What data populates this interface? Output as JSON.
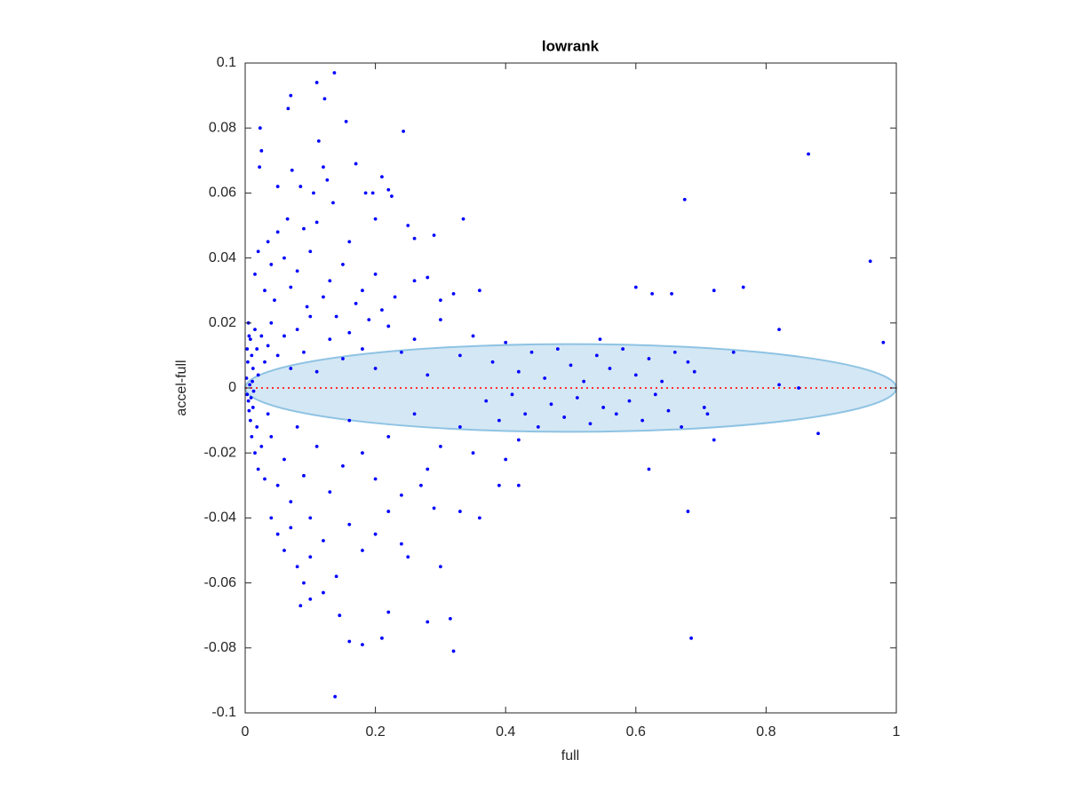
{
  "chart_data": {
    "type": "scatter",
    "title": "lowrank",
    "x_label": "full",
    "y_label": "accel-full",
    "xlim": [
      0,
      1
    ],
    "ylim": [
      -0.1,
      0.1
    ],
    "xticks": [
      0,
      0.2,
      0.4,
      0.6,
      0.8,
      1
    ],
    "yticks": [
      -0.1,
      -0.08,
      -0.06,
      -0.04,
      -0.02,
      0,
      0.02,
      0.04,
      0.06,
      0.08,
      0.1
    ],
    "ellipse": {
      "x": [
        0,
        1
      ],
      "y": [
        -0.0135,
        0.0135
      ],
      "color": "#d4e7f4",
      "edge_color": "#8ec3e3"
    },
    "reference_line": {
      "y": 0,
      "color": "#ff3030"
    },
    "series": [
      {
        "color": "#0000ff",
        "x": [
          0.137,
          0.11,
          0.122,
          0.07,
          0.066,
          0.155,
          0.023,
          0.243,
          0.113,
          0.025,
          0.865,
          0.17,
          0.12,
          0.022,
          0.072,
          0.21,
          0.126,
          0.085,
          0.05,
          0.185,
          0.22,
          0.675,
          0.105,
          0.196,
          0.225,
          0.135,
          0.335,
          0.065,
          0.2,
          0.25,
          0.11,
          0.09,
          0.26,
          0.29,
          0.16,
          0.96,
          0.05,
          0.035,
          0.02,
          0.04,
          0.06,
          0.08,
          0.1,
          0.13,
          0.15,
          0.18,
          0.2,
          0.23,
          0.26,
          0.28,
          0.015,
          0.03,
          0.045,
          0.07,
          0.095,
          0.12,
          0.14,
          0.17,
          0.19,
          0.21,
          0.3,
          0.32,
          0.36,
          0.6,
          0.625,
          0.655,
          0.72,
          0.765,
          0.82,
          0.98,
          0.005,
          0.008,
          0.01,
          0.012,
          0.015,
          0.018,
          0.02,
          0.025,
          0.03,
          0.035,
          0.04,
          0.05,
          0.06,
          0.07,
          0.08,
          0.09,
          0.1,
          0.11,
          0.13,
          0.15,
          0.16,
          0.18,
          0.2,
          0.22,
          0.24,
          0.26,
          0.28,
          0.3,
          0.33,
          0.35,
          0.38,
          0.4,
          0.42,
          0.44,
          0.46,
          0.48,
          0.5,
          0.52,
          0.54,
          0.545,
          0.56,
          0.58,
          0.6,
          0.62,
          0.64,
          0.66,
          0.68,
          0.69,
          0.75,
          0.82,
          0.37,
          0.39,
          0.41,
          0.43,
          0.45,
          0.47,
          0.49,
          0.51,
          0.53,
          0.55,
          0.57,
          0.59,
          0.61,
          0.63,
          0.65,
          0.67,
          0.705,
          0.71,
          0.85,
          0.88,
          0.005,
          0.008,
          0.01,
          0.012,
          0.015,
          0.018,
          0.02,
          0.025,
          0.03,
          0.035,
          0.04,
          0.05,
          0.06,
          0.07,
          0.08,
          0.09,
          0.1,
          0.11,
          0.13,
          0.15,
          0.16,
          0.18,
          0.2,
          0.22,
          0.24,
          0.26,
          0.28,
          0.3,
          0.33,
          0.35,
          0.04,
          0.05,
          0.06,
          0.07,
          0.08,
          0.09,
          0.1,
          0.12,
          0.14,
          0.16,
          0.18,
          0.2,
          0.22,
          0.24,
          0.25,
          0.3,
          0.138,
          0.32,
          0.685,
          0.18,
          0.16,
          0.21,
          0.28,
          0.315,
          0.145,
          0.22,
          0.085,
          0.12,
          0.1,
          0.68,
          0.72,
          0.62,
          0.36,
          0.33,
          0.42,
          0.39,
          0.4,
          0.42,
          0.29,
          0.27,
          0.002,
          0.003,
          0.004,
          0.006,
          0.007,
          0.009,
          0.011,
          0.013,
          0.003,
          0.006
        ],
        "values": [
          0.097,
          0.094,
          0.089,
          0.09,
          0.086,
          0.082,
          0.08,
          0.079,
          0.076,
          0.073,
          0.072,
          0.069,
          0.068,
          0.068,
          0.067,
          0.065,
          0.064,
          0.062,
          0.062,
          0.06,
          0.061,
          0.058,
          0.06,
          0.06,
          0.059,
          0.057,
          0.052,
          0.052,
          0.052,
          0.05,
          0.051,
          0.049,
          0.046,
          0.047,
          0.045,
          0.039,
          0.048,
          0.045,
          0.042,
          0.038,
          0.04,
          0.036,
          0.042,
          0.033,
          0.038,
          0.03,
          0.035,
          0.028,
          0.033,
          0.034,
          0.035,
          0.03,
          0.027,
          0.031,
          0.025,
          0.028,
          0.022,
          0.026,
          0.021,
          0.024,
          0.027,
          0.029,
          0.03,
          0.031,
          0.029,
          0.029,
          0.03,
          0.031,
          0.018,
          0.014,
          0.02,
          0.015,
          0.01,
          0.006,
          0.018,
          0.012,
          0.004,
          0.016,
          0.008,
          0.013,
          0.02,
          0.01,
          0.016,
          0.006,
          0.018,
          0.011,
          0.022,
          0.005,
          0.015,
          0.009,
          0.017,
          0.012,
          0.006,
          0.019,
          0.011,
          0.015,
          0.004,
          0.021,
          0.01,
          0.016,
          0.008,
          0.014,
          0.005,
          0.011,
          0.003,
          0.012,
          0.007,
          0.002,
          0.01,
          0.015,
          0.006,
          0.012,
          0.004,
          0.009,
          0.002,
          0.011,
          0.008,
          0.005,
          0.011,
          0.001,
          -0.004,
          -0.01,
          -0.002,
          -0.008,
          -0.012,
          -0.005,
          -0.009,
          -0.003,
          -0.011,
          -0.006,
          -0.008,
          -0.004,
          -0.01,
          -0.002,
          -0.007,
          -0.012,
          -0.006,
          -0.008,
          0,
          -0.014,
          -0.004,
          -0.01,
          -0.015,
          -0.006,
          -0.02,
          -0.012,
          -0.025,
          -0.018,
          -0.028,
          -0.008,
          -0.015,
          -0.03,
          -0.022,
          -0.035,
          -0.012,
          -0.027,
          -0.04,
          -0.018,
          -0.032,
          -0.024,
          -0.01,
          -0.02,
          -0.028,
          -0.015,
          -0.033,
          -0.008,
          -0.025,
          -0.018,
          -0.012,
          -0.02,
          -0.04,
          -0.045,
          -0.05,
          -0.043,
          -0.055,
          -0.06,
          -0.052,
          -0.047,
          -0.058,
          -0.042,
          -0.05,
          -0.045,
          -0.038,
          -0.048,
          -0.052,
          -0.055,
          -0.095,
          -0.081,
          -0.077,
          -0.079,
          -0.078,
          -0.077,
          -0.072,
          -0.071,
          -0.07,
          -0.069,
          -0.067,
          -0.063,
          -0.065,
          -0.038,
          -0.016,
          -0.025,
          -0.04,
          -0.038,
          -0.03,
          -0.03,
          -0.022,
          -0.016,
          -0.037,
          -0.03,
          0.003,
          -0.002,
          0.008,
          -0.007,
          0.001,
          -0.003,
          0.002,
          -0.001,
          0.012,
          0.016
        ]
      }
    ]
  }
}
